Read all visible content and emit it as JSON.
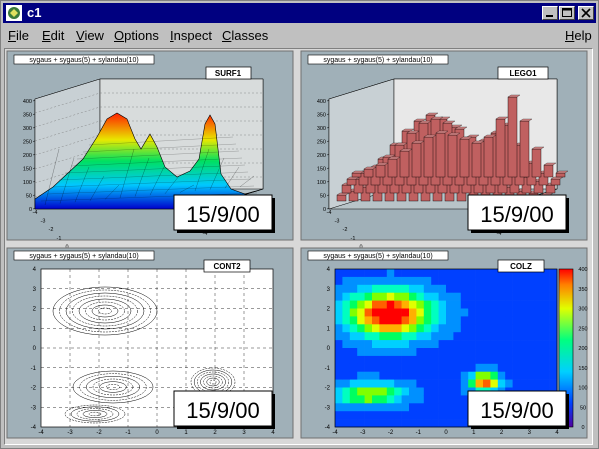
{
  "window": {
    "title": "c1"
  },
  "menu": {
    "file": {
      "u": "F",
      "rest": "ile"
    },
    "edit": {
      "u": "E",
      "rest": "dit"
    },
    "view": {
      "u": "V",
      "rest": "iew"
    },
    "options": {
      "u": "O",
      "rest": "ptions"
    },
    "inspect": {
      "u": "I",
      "rest": "nspect"
    },
    "classes": {
      "u": "C",
      "rest": "lasses"
    },
    "help": {
      "u": "H",
      "rest": "elp"
    }
  },
  "pads": [
    {
      "formula": "sygaus + sygaus(5) + sylandau(10)",
      "option": "SURF1",
      "date": "15/9/00"
    },
    {
      "formula": "sygaus + sygaus(5) + sylandau(10)",
      "option": "LEGO1",
      "date": "15/9/00"
    },
    {
      "formula": "sygaus + sygaus(5) + sylandau(10)",
      "option": "CONT2",
      "date": "15/9/00"
    },
    {
      "formula": "sygaus + sygaus(5) + sylandau(10)",
      "option": "COLZ",
      "date": "15/9/00"
    }
  ],
  "axis": {
    "z_ticks": [
      "0",
      "50",
      "100",
      "150",
      "200",
      "250",
      "300",
      "350",
      "400"
    ],
    "xy_ticks": [
      "-4",
      "-3",
      "-2",
      "-1",
      "0",
      "1",
      "2",
      "3",
      "4"
    ],
    "colz_scale": [
      "0",
      "50",
      "100",
      "150",
      "200",
      "250",
      "300",
      "350",
      "400"
    ]
  },
  "colors": {
    "title_bar": "#000080",
    "pad_bg": "#a0b0b8",
    "lego_fill": "#c06060",
    "frame": "#707070"
  }
}
